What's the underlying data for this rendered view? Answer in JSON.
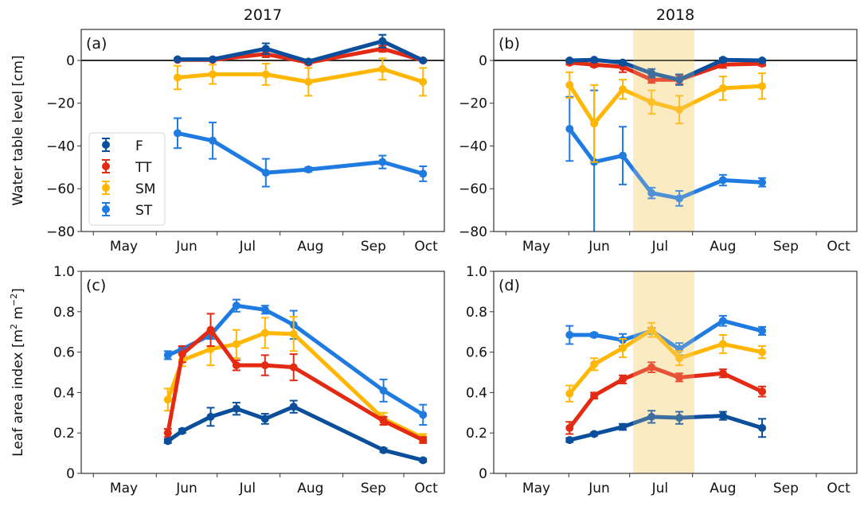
{
  "figure": {
    "column_titles": [
      "2017",
      "2018"
    ],
    "ylabels": {
      "water_table": "Water table level [cm]",
      "lai_prefix": "Leaf area index [m",
      "lai_sup1": "2",
      "lai_mid": " m",
      "lai_sup2": "−2",
      "lai_suffix": "]"
    },
    "legend": {
      "placement": "lower-left of panel (a)",
      "entries": [
        {
          "key": "F",
          "label": "F"
        },
        {
          "key": "TT",
          "label": "TT"
        },
        {
          "key": "SM",
          "label": "SM"
        },
        {
          "key": "ST",
          "label": "ST"
        }
      ]
    },
    "colors": {
      "F": "#0b4f9c",
      "TT": "#e32b14",
      "SM": "#ffb703",
      "ST": "#1f7be0",
      "shading": "#fdefc8",
      "zero_line": "#000000",
      "axis": "#333333"
    }
  },
  "chart_data": [
    {
      "id": "a",
      "panel_label": "(a)",
      "type": "line",
      "title": "2017",
      "xlabel": "",
      "ylabel": "Water table level [cm]",
      "x_units": "day of year",
      "xlim": [
        115,
        294
      ],
      "ylim": [
        -80,
        14.5
      ],
      "yticks": [
        0,
        -20,
        -40,
        -60,
        -80
      ],
      "ytick_labels": [
        "0",
        "−20",
        "−40",
        "−60",
        "−80"
      ],
      "xticks": [
        121,
        152,
        182,
        213,
        244,
        274
      ],
      "month_labels": [
        {
          "x": 136,
          "label": "May"
        },
        {
          "x": 167,
          "label": "Jun"
        },
        {
          "x": 197,
          "label": "Jul"
        },
        {
          "x": 228,
          "label": "Aug"
        },
        {
          "x": 259,
          "label": "Sep"
        },
        {
          "x": 285,
          "label": "Oct"
        }
      ],
      "zero_line": true,
      "grid": false,
      "legend": true,
      "shade": null,
      "series": [
        {
          "name": "F",
          "x": [
            162.5,
            179.8,
            206,
            227,
            263.5,
            283.5
          ],
          "y": [
            0.5,
            0.5,
            5.5,
            -0.5,
            9,
            0
          ],
          "err": [
            0.5,
            0.5,
            2.5,
            0.5,
            3,
            0.5
          ]
        },
        {
          "name": "TT",
          "x": [
            162.5,
            179.8,
            206,
            227,
            263.5,
            283.5
          ],
          "y": [
            0.3,
            0.3,
            3,
            -1,
            5.5,
            0
          ],
          "err": [
            0.5,
            0.5,
            1.5,
            0.8,
            1.5,
            0.5
          ]
        },
        {
          "name": "SM",
          "x": [
            162.5,
            179.8,
            206,
            227,
            263.5,
            283.5
          ],
          "y": [
            -8,
            -6.5,
            -6.5,
            -10,
            -4,
            -10
          ],
          "err": [
            5.5,
            4.5,
            5,
            6.5,
            5,
            6.5
          ]
        },
        {
          "name": "ST",
          "x": [
            162.5,
            179.8,
            206,
            227,
            263.5,
            283.5
          ],
          "y": [
            -34,
            -37.5,
            -52.5,
            -51,
            -47.5,
            -53
          ],
          "err": [
            7,
            8.5,
            6.5,
            1,
            3,
            3.5
          ]
        }
      ]
    },
    {
      "id": "b",
      "panel_label": "(b)",
      "type": "line",
      "title": "2018",
      "xlabel": "",
      "ylabel": "",
      "x_units": "day of year",
      "xlim": [
        115,
        294
      ],
      "ylim": [
        -80,
        14.5
      ],
      "yticks": [
        0,
        -20,
        -40,
        -60,
        -80
      ],
      "ytick_labels": [
        "0",
        "−20",
        "−40",
        "−60",
        "−80"
      ],
      "xticks": [
        121,
        152,
        182,
        213,
        244,
        274
      ],
      "month_labels": [
        {
          "x": 136,
          "label": "May"
        },
        {
          "x": 167,
          "label": "Jun"
        },
        {
          "x": 197,
          "label": "Jul"
        },
        {
          "x": 228,
          "label": "Aug"
        },
        {
          "x": 259,
          "label": "Sep"
        },
        {
          "x": 285,
          "label": "Oct"
        }
      ],
      "zero_line": true,
      "grid": false,
      "legend": false,
      "shade": [
        183.7,
        213.9
      ],
      "series": [
        {
          "name": "F",
          "x": [
            152.4,
            164.5,
            178.6,
            192.8,
            206.5,
            228,
            247.3
          ],
          "y": [
            0,
            0.3,
            -1,
            -6,
            -9,
            0.3,
            0
          ],
          "err": [
            0.5,
            0.5,
            0.8,
            2,
            2.5,
            0.8,
            0.5
          ]
        },
        {
          "name": "TT",
          "x": [
            152.4,
            164.5,
            178.6,
            192.8,
            206.5,
            228,
            247.3
          ],
          "y": [
            -1,
            -2,
            -3,
            -9,
            -9,
            -2,
            -1.5
          ],
          "err": [
            1,
            1,
            2.5,
            1.5,
            2,
            1.5,
            1
          ]
        },
        {
          "name": "SM",
          "x": [
            152.4,
            164.5,
            178.6,
            192.8,
            206.5,
            228,
            247.3
          ],
          "y": [
            -11.5,
            -29.5,
            -13.5,
            -19.5,
            -23,
            -13,
            -12
          ],
          "err": [
            6,
            18,
            4.5,
            5.5,
            6.5,
            5.5,
            6
          ]
        },
        {
          "name": "ST",
          "x": [
            152.4,
            164.5,
            178.6,
            192.8,
            206.5,
            228,
            247.3
          ],
          "y": [
            -32,
            -47.5,
            -44.5,
            -62,
            -64.5,
            -56,
            -57
          ],
          "err": [
            15,
            33.5,
            13.5,
            2.5,
            3.5,
            2.5,
            2
          ]
        }
      ]
    },
    {
      "id": "c",
      "panel_label": "(c)",
      "type": "line",
      "title": "",
      "xlabel": "",
      "ylabel": "Leaf area index [m^2 m^-2]",
      "x_units": "day of year",
      "xlim": [
        115,
        294
      ],
      "ylim": [
        0,
        1.0
      ],
      "yticks": [
        0,
        0.2,
        0.4,
        0.6,
        0.8,
        1.0
      ],
      "ytick_labels": [
        "0",
        "0.2",
        "0.4",
        "0.6",
        "0.8",
        "1.0"
      ],
      "xticks": [
        121,
        152,
        182,
        213,
        244,
        274
      ],
      "month_labels": [
        {
          "x": 136,
          "label": "May"
        },
        {
          "x": 167,
          "label": "Jun"
        },
        {
          "x": 197,
          "label": "Jul"
        },
        {
          "x": 228,
          "label": "Aug"
        },
        {
          "x": 259,
          "label": "Sep"
        },
        {
          "x": 285,
          "label": "Oct"
        }
      ],
      "zero_line": false,
      "grid": false,
      "legend": false,
      "shade": null,
      "series": [
        {
          "name": "F",
          "x": [
            157.7,
            164.8,
            178.8,
            191.5,
            205.6,
            219.7,
            264,
            283.5
          ],
          "y": [
            0.16,
            0.21,
            0.28,
            0.32,
            0.27,
            0.33,
            0.115,
            0.065
          ],
          "err": [
            0.01,
            0.01,
            0.045,
            0.03,
            0.025,
            0.03,
            0.01,
            0.008
          ]
        },
        {
          "name": "TT",
          "x": [
            157.7,
            164.8,
            178.8,
            191.5,
            205.6,
            219.7,
            264,
            283.5
          ],
          "y": [
            0.2,
            0.59,
            0.71,
            0.535,
            0.535,
            0.525,
            0.26,
            0.165
          ],
          "err": [
            0.02,
            0.04,
            0.08,
            0.025,
            0.05,
            0.065,
            0.02,
            0.015
          ]
        },
        {
          "name": "SM",
          "x": [
            157.7,
            164.8,
            178.8,
            191.5,
            205.6,
            219.7,
            264,
            283.5
          ],
          "y": [
            0.365,
            0.56,
            0.615,
            0.64,
            0.695,
            0.69,
            0.27,
            0.175
          ],
          "err": [
            0.055,
            0.03,
            0.08,
            0.07,
            0.075,
            0.085,
            0.03,
            0.02
          ]
        },
        {
          "name": "ST",
          "x": [
            157.7,
            164.8,
            178.8,
            191.5,
            205.6,
            219.7,
            264,
            283.5
          ],
          "y": [
            0.585,
            0.615,
            0.685,
            0.83,
            0.81,
            0.735,
            0.41,
            0.29
          ],
          "err": [
            0.02,
            0.01,
            0.02,
            0.03,
            0.02,
            0.07,
            0.055,
            0.05
          ]
        }
      ]
    },
    {
      "id": "d",
      "panel_label": "(d)",
      "type": "line",
      "title": "",
      "xlabel": "",
      "ylabel": "",
      "x_units": "day of year",
      "xlim": [
        115,
        294
      ],
      "ylim": [
        0,
        1.0
      ],
      "yticks": [
        0,
        0.2,
        0.4,
        0.6,
        0.8,
        1.0
      ],
      "ytick_labels": [
        "0",
        "0.2",
        "0.4",
        "0.6",
        "0.8",
        "1.0"
      ],
      "xticks": [
        121,
        152,
        182,
        213,
        244,
        274
      ],
      "month_labels": [
        {
          "x": 136,
          "label": "May"
        },
        {
          "x": 167,
          "label": "Jun"
        },
        {
          "x": 197,
          "label": "Jul"
        },
        {
          "x": 228,
          "label": "Aug"
        },
        {
          "x": 259,
          "label": "Sep"
        },
        {
          "x": 285,
          "label": "Oct"
        }
      ],
      "zero_line": false,
      "grid": false,
      "legend": false,
      "shade": [
        183.7,
        213.9
      ],
      "series": [
        {
          "name": "F",
          "x": [
            152.4,
            164.5,
            178.6,
            192.8,
            206.5,
            228,
            247.3
          ],
          "y": [
            0.165,
            0.195,
            0.23,
            0.28,
            0.275,
            0.285,
            0.225
          ],
          "err": [
            0.01,
            0.008,
            0.015,
            0.03,
            0.03,
            0.02,
            0.045
          ]
        },
        {
          "name": "TT",
          "x": [
            152.4,
            164.5,
            178.6,
            192.8,
            206.5,
            228,
            247.3
          ],
          "y": [
            0.225,
            0.385,
            0.465,
            0.525,
            0.475,
            0.495,
            0.405
          ],
          "err": [
            0.03,
            0.015,
            0.02,
            0.025,
            0.02,
            0.02,
            0.025
          ]
        },
        {
          "name": "SM",
          "x": [
            152.4,
            164.5,
            178.6,
            192.8,
            206.5,
            228,
            247.3
          ],
          "y": [
            0.395,
            0.54,
            0.62,
            0.71,
            0.57,
            0.64,
            0.6
          ],
          "err": [
            0.04,
            0.03,
            0.045,
            0.035,
            0.035,
            0.045,
            0.03
          ]
        },
        {
          "name": "ST",
          "x": [
            152.4,
            164.5,
            178.6,
            192.8,
            206.5,
            228,
            247.3
          ],
          "y": [
            0.685,
            0.685,
            0.66,
            0.705,
            0.615,
            0.755,
            0.705
          ],
          "err": [
            0.045,
            0.01,
            0.03,
            0.015,
            0.03,
            0.025,
            0.02
          ]
        }
      ]
    }
  ]
}
